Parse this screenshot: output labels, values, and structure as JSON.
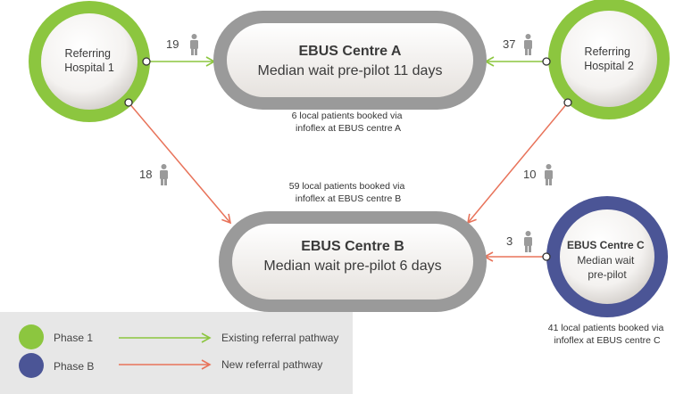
{
  "colors": {
    "phase1": "#8cc63f",
    "phaseB": "#4b5596",
    "existing_pathway": "#8cc63f",
    "new_pathway": "#e8735a",
    "centre_ring": "#9a9a9a",
    "legend_bg": "#e7e7e7"
  },
  "nodes": {
    "hospital1": {
      "line1": "Referring",
      "line2": "Hospital 1"
    },
    "hospital2": {
      "line1": "Referring",
      "line2": "Hospital 2"
    },
    "centreA": {
      "title": "EBUS Centre A",
      "subtitle": "Median wait pre-pilot 11 days"
    },
    "centreB": {
      "title": "EBUS Centre B",
      "subtitle": "Median wait pre-pilot 6 days"
    },
    "centreC": {
      "line1": "EBUS Centre C",
      "line2": "Median wait",
      "line3": "pre-pilot"
    }
  },
  "flows": {
    "h1_to_a": "19",
    "h2_to_a": "37",
    "h1_to_b": "18",
    "h2_to_b": "10",
    "c_to_b": "3"
  },
  "notes": {
    "centreA": {
      "line1": "6 local patients booked via",
      "line2": "infoflex at EBUS centre A"
    },
    "centreB": {
      "line1": "59 local patients booked via",
      "line2": "infoflex at EBUS centre B"
    },
    "centreC": {
      "line1": "41 local patients booked via",
      "line2": "infoflex at EBUS centre C"
    }
  },
  "legend": {
    "phase1": "Phase 1",
    "phaseB": "Phase B",
    "existing": "Existing referral pathway",
    "new": "New referral pathway"
  },
  "icons": [
    "person-icon",
    "arrow-icon",
    "circle-icon"
  ]
}
